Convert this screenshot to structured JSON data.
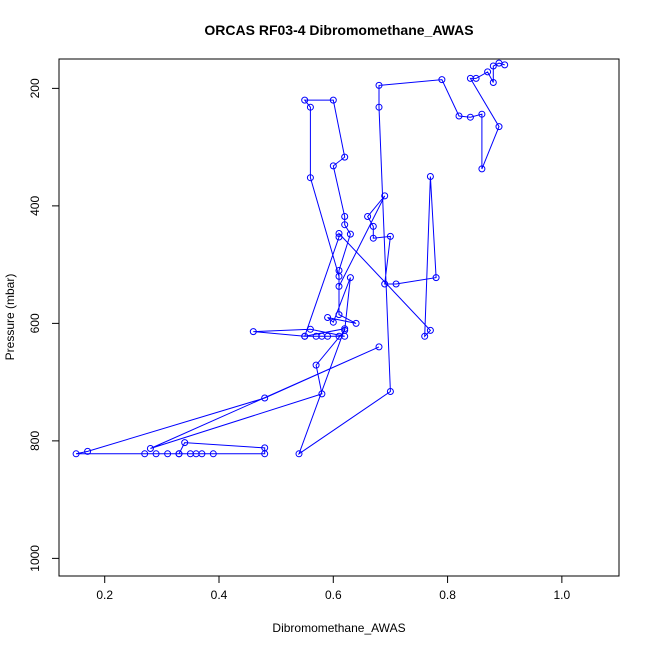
{
  "chart_data": {
    "type": "line",
    "title": "ORCAS RF03-4 Dibromomethane_AWAS",
    "xlabel": "Dibromomethane_AWAS",
    "ylabel": "Pressure (mbar)",
    "xlim": [
      0.12,
      1.1
    ],
    "ylim": [
      1030,
      150
    ],
    "y_reversed": true,
    "x_ticks": [
      0.2,
      0.4,
      0.6,
      0.8,
      1.0
    ],
    "x_tick_labels": [
      "0.2",
      "0.4",
      "0.6",
      "0.8",
      "1.0"
    ],
    "y_ticks": [
      200,
      400,
      600,
      800,
      1000
    ],
    "y_tick_labels": [
      "200",
      "400",
      "600",
      "800",
      "1000"
    ],
    "grid": false,
    "color": "#0000ff",
    "marker": "open-circle",
    "series": [
      {
        "points": [
          [
            0.27,
            822
          ],
          [
            0.33,
            822
          ],
          [
            0.36,
            822
          ],
          [
            0.48,
            822
          ],
          [
            0.48,
            812
          ],
          [
            0.34,
            803
          ],
          [
            0.33,
            822
          ],
          [
            0.35,
            822
          ],
          [
            0.37,
            822
          ],
          [
            0.39,
            822
          ],
          [
            0.31,
            822
          ],
          [
            0.29,
            822
          ],
          [
            0.15,
            822
          ],
          [
            0.17,
            818
          ],
          [
            0.48,
            727
          ],
          [
            0.68,
            640
          ],
          [
            0.28,
            813
          ],
          [
            0.58,
            720
          ],
          [
            0.57,
            671
          ],
          [
            0.62,
            612
          ],
          [
            0.63,
            522
          ],
          [
            0.6,
            598
          ],
          [
            0.59,
            590
          ],
          [
            0.64,
            600
          ],
          [
            0.61,
            585
          ],
          [
            0.61,
            510
          ],
          [
            0.63,
            448
          ],
          [
            0.62,
            432
          ],
          [
            0.62,
            418
          ],
          [
            0.6,
            332
          ],
          [
            0.62,
            317
          ],
          [
            0.6,
            220
          ],
          [
            0.55,
            220
          ],
          [
            0.56,
            232
          ],
          [
            0.56,
            352
          ],
          [
            0.61,
            520
          ],
          [
            0.61,
            537
          ],
          [
            0.69,
            383
          ],
          [
            0.66,
            418
          ],
          [
            0.67,
            435
          ],
          [
            0.67,
            455
          ],
          [
            0.7,
            452
          ],
          [
            0.69,
            533
          ],
          [
            0.71,
            533
          ],
          [
            0.78,
            522
          ],
          [
            0.77,
            350
          ],
          [
            0.76,
            622
          ],
          [
            0.77,
            612
          ],
          [
            0.61,
            447
          ],
          [
            0.61,
            453
          ],
          [
            0.55,
            622
          ],
          [
            0.57,
            622
          ],
          [
            0.58,
            622
          ],
          [
            0.59,
            622
          ],
          [
            0.61,
            622
          ],
          [
            0.62,
            622
          ],
          [
            0.56,
            610
          ],
          [
            0.46,
            614
          ],
          [
            0.55,
            622
          ],
          [
            0.62,
            609
          ],
          [
            0.54,
            822
          ],
          [
            0.7,
            716
          ],
          [
            0.68,
            232
          ],
          [
            0.68,
            195
          ],
          [
            0.79,
            185
          ],
          [
            0.82,
            247
          ],
          [
            0.84,
            249
          ],
          [
            0.86,
            244
          ],
          [
            0.86,
            337
          ],
          [
            0.89,
            265
          ],
          [
            0.84,
            183
          ],
          [
            0.85,
            183
          ],
          [
            0.87,
            172
          ],
          [
            0.88,
            190
          ],
          [
            0.88,
            162
          ],
          [
            0.89,
            157
          ],
          [
            0.9,
            160
          ]
        ]
      }
    ]
  }
}
